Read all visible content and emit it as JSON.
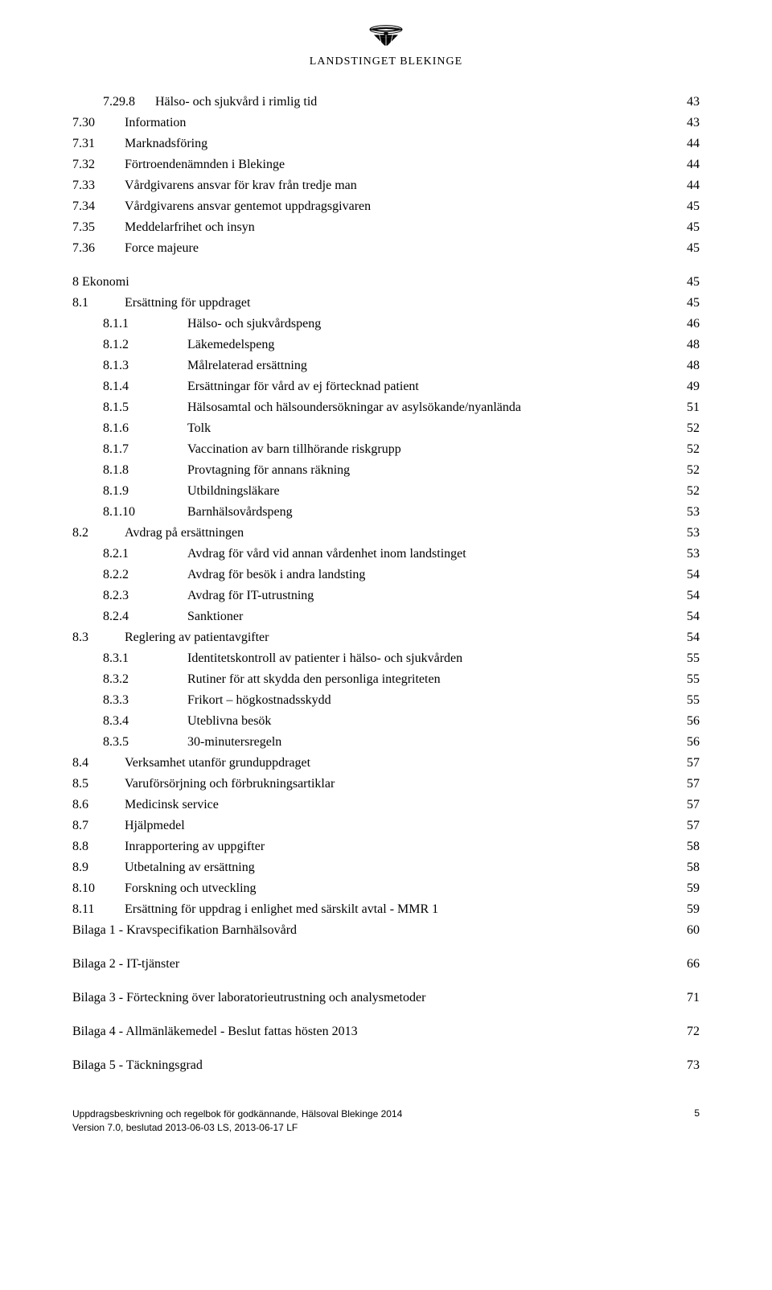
{
  "logo": {
    "org_name": "LANDSTINGET BLEKINGE"
  },
  "toc": [
    {
      "num": "7.29.8",
      "title": "Hälso- och sjukvård i rimlig tid",
      "page": "43",
      "indent": 1,
      "number_width": 65
    },
    {
      "num": "7.30",
      "title": "Information",
      "page": "43",
      "indent": 0,
      "number_width": 65
    },
    {
      "num": "7.31",
      "title": "Marknadsföring",
      "page": "44",
      "indent": 0,
      "number_width": 65
    },
    {
      "num": "7.32",
      "title": "Förtroendenämnden i Blekinge",
      "page": "44",
      "indent": 0,
      "number_width": 65
    },
    {
      "num": "7.33",
      "title": "Vårdgivarens ansvar för krav från tredje man",
      "page": "44",
      "indent": 0,
      "number_width": 65
    },
    {
      "num": "7.34",
      "title": "Vårdgivarens ansvar gentemot uppdragsgivaren",
      "page": "45",
      "indent": 0,
      "number_width": 65
    },
    {
      "num": "7.35",
      "title": "Meddelarfrihet och insyn",
      "page": "45",
      "indent": 0,
      "number_width": 65
    },
    {
      "num": "7.36",
      "title": "Force majeure",
      "page": "45",
      "indent": 0,
      "number_width": 65
    },
    {
      "num": "8 Ekonomi",
      "title": "",
      "page": "45",
      "indent": 0,
      "number_width": 0,
      "gap": true,
      "heading": true
    },
    {
      "num": "8.1",
      "title": "Ersättning för uppdraget",
      "page": "45",
      "indent": 0,
      "number_width": 65
    },
    {
      "num": "8.1.1",
      "title": "Hälso- och sjukvårdspeng",
      "page": "46",
      "indent": 1,
      "number_width": 105
    },
    {
      "num": "8.1.2",
      "title": "Läkemedelspeng",
      "page": "48",
      "indent": 1,
      "number_width": 105
    },
    {
      "num": "8.1.3",
      "title": "Målrelaterad ersättning",
      "page": "48",
      "indent": 1,
      "number_width": 105
    },
    {
      "num": "8.1.4",
      "title": "Ersättningar för vård av ej förtecknad patient",
      "page": "49",
      "indent": 1,
      "number_width": 105
    },
    {
      "num": "8.1.5",
      "title": "Hälsosamtal och hälsoundersökningar av asylsökande/nyanlända",
      "page": "51",
      "indent": 1,
      "number_width": 105
    },
    {
      "num": "8.1.6",
      "title": "Tolk",
      "page": "52",
      "indent": 1,
      "number_width": 105
    },
    {
      "num": "8.1.7",
      "title": "Vaccination av barn tillhörande riskgrupp",
      "page": "52",
      "indent": 1,
      "number_width": 105
    },
    {
      "num": "8.1.8",
      "title": "Provtagning för annans räkning",
      "page": "52",
      "indent": 1,
      "number_width": 105
    },
    {
      "num": "8.1.9",
      "title": "Utbildningsläkare",
      "page": "52",
      "indent": 1,
      "number_width": 105
    },
    {
      "num": "8.1.10",
      "title": "Barnhälsovårdspeng",
      "page": "53",
      "indent": 1,
      "number_width": 105
    },
    {
      "num": "8.2",
      "title": "Avdrag på ersättningen",
      "page": "53",
      "indent": 0,
      "number_width": 65
    },
    {
      "num": "8.2.1",
      "title": "Avdrag för vård vid annan vårdenhet inom landstinget",
      "page": "53",
      "indent": 1,
      "number_width": 105
    },
    {
      "num": "8.2.2",
      "title": "Avdrag för besök i andra landsting",
      "page": "54",
      "indent": 1,
      "number_width": 105
    },
    {
      "num": "8.2.3",
      "title": "Avdrag för IT-utrustning",
      "page": "54",
      "indent": 1,
      "number_width": 105
    },
    {
      "num": "8.2.4",
      "title": "Sanktioner",
      "page": "54",
      "indent": 1,
      "number_width": 105
    },
    {
      "num": "8.3",
      "title": "Reglering av patientavgifter",
      "page": "54",
      "indent": 0,
      "number_width": 65
    },
    {
      "num": "8.3.1",
      "title": "Identitetskontroll av patienter i hälso- och sjukvården",
      "page": "55",
      "indent": 1,
      "number_width": 105
    },
    {
      "num": "8.3.2",
      "title": "Rutiner för att skydda den personliga integriteten",
      "page": "55",
      "indent": 1,
      "number_width": 105
    },
    {
      "num": "8.3.3",
      "title": "Frikort – högkostnadsskydd",
      "page": "55",
      "indent": 1,
      "number_width": 105
    },
    {
      "num": "8.3.4",
      "title": "Uteblivna besök",
      "page": "56",
      "indent": 1,
      "number_width": 105
    },
    {
      "num": "8.3.5",
      "title": "30-minutersregeln",
      "page": "56",
      "indent": 1,
      "number_width": 105
    },
    {
      "num": "8.4",
      "title": "Verksamhet utanför grunduppdraget",
      "page": "57",
      "indent": 0,
      "number_width": 65
    },
    {
      "num": "8.5",
      "title": "Varuförsörjning och förbrukningsartiklar",
      "page": "57",
      "indent": 0,
      "number_width": 65
    },
    {
      "num": "8.6",
      "title": "Medicinsk service",
      "page": "57",
      "indent": 0,
      "number_width": 65
    },
    {
      "num": "8.7",
      "title": "Hjälpmedel",
      "page": "57",
      "indent": 0,
      "number_width": 65
    },
    {
      "num": "8.8",
      "title": "Inrapportering av uppgifter",
      "page": "58",
      "indent": 0,
      "number_width": 65
    },
    {
      "num": "8.9",
      "title": "Utbetalning av ersättning",
      "page": "58",
      "indent": 0,
      "number_width": 65
    },
    {
      "num": "8.10",
      "title": "Forskning och utveckling",
      "page": "59",
      "indent": 0,
      "number_width": 65
    },
    {
      "num": "8.11",
      "title": "Ersättning för uppdrag i enlighet med särskilt avtal - MMR 1",
      "page": "59",
      "indent": 0,
      "number_width": 65
    },
    {
      "num": "Bilaga 1 - Kravspecifikation Barnhälsovård",
      "title": "",
      "page": "60",
      "indent": 0,
      "number_width": 0,
      "heading": true
    },
    {
      "num": "Bilaga 2 - IT-tjänster",
      "title": "",
      "page": "66",
      "indent": 0,
      "number_width": 0,
      "gap": true,
      "heading": true
    },
    {
      "num": "Bilaga 3 - Förteckning över laboratorieutrustning och analysmetoder",
      "title": "",
      "page": "71",
      "indent": 0,
      "number_width": 0,
      "gap": true,
      "heading": true
    },
    {
      "num": "Bilaga 4 - Allmänläkemedel - Beslut fattas hösten 2013",
      "title": "",
      "page": "72",
      "indent": 0,
      "number_width": 0,
      "gap": true,
      "heading": true
    },
    {
      "num": "Bilaga 5 - Täckningsgrad",
      "title": "",
      "page": "73",
      "indent": 0,
      "number_width": 0,
      "gap": true,
      "heading": true
    }
  ],
  "footer": {
    "line1": "Uppdragsbeskrivning och regelbok för godkännande, Hälsoval Blekinge 2014",
    "line2": "Version 7.0, beslutad 2013-06-03 LS, 2013-06-17 LF",
    "page_number": "5"
  },
  "style": {
    "font_family": "Georgia, 'Times New Roman', serif",
    "text_color": "#000000",
    "background_color": "#ffffff",
    "body_font_size": 16,
    "footer_font_size": 12
  }
}
